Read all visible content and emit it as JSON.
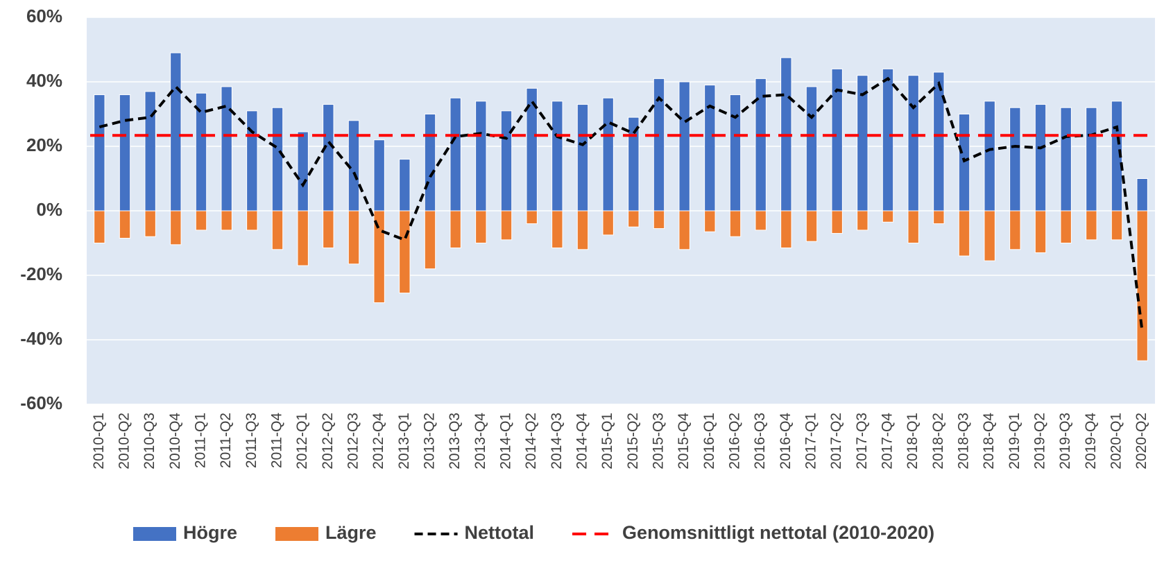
{
  "chart_data": {
    "type": "bar_line",
    "categories": [
      "2010-Q1",
      "2010-Q2",
      "2010-Q3",
      "2010-Q4",
      "2011-Q1",
      "2011-Q2",
      "2011-Q3",
      "2011-Q4",
      "2012-Q1",
      "2012-Q2",
      "2012-Q3",
      "2012-Q4",
      "2013-Q1",
      "2013-Q2",
      "2013-Q3",
      "2013-Q4",
      "2014-Q1",
      "2014-Q2",
      "2014-Q3",
      "2014-Q4",
      "2015-Q1",
      "2015-Q2",
      "2015-Q3",
      "2015-Q4",
      "2016-Q1",
      "2016-Q2",
      "2016-Q3",
      "2016-Q4",
      "2017-Q1",
      "2017-Q2",
      "2017-Q3",
      "2017-Q4",
      "2018-Q1",
      "2018-Q2",
      "2018-Q3",
      "2018-Q4",
      "2019-Q1",
      "2019-Q2",
      "2019-Q3",
      "2019-Q4",
      "2020-Q1",
      "2020-Q2"
    ],
    "series": [
      {
        "name": "Högre",
        "type": "bar",
        "color": "#4472c4",
        "values": [
          36,
          36,
          37,
          49,
          36.5,
          38.5,
          31,
          32,
          24.5,
          33,
          28,
          22,
          16,
          30,
          35,
          34,
          31,
          38,
          34,
          33,
          35,
          29,
          41,
          40,
          39,
          36,
          41,
          47.5,
          38.5,
          44,
          42,
          44,
          42,
          43,
          30,
          34,
          32,
          33,
          32,
          32,
          34,
          10
        ]
      },
      {
        "name": "Lägre",
        "type": "bar",
        "color": "#ed7d31",
        "values": [
          -10,
          -8.5,
          -8,
          -10.5,
          -6,
          -6,
          -6,
          -12,
          -17,
          -11.5,
          -16.5,
          -28.5,
          -25.5,
          -18,
          -11.5,
          -10,
          -9,
          -4,
          -11.5,
          -12,
          -7.5,
          -5,
          -5.5,
          -12,
          -6.5,
          -8,
          -6,
          -11.5,
          -9.5,
          -7,
          -6,
          -3.5,
          -10,
          -4,
          -14,
          -15.5,
          -12,
          -13,
          -10,
          -9,
          -9,
          -46.5
        ]
      },
      {
        "name": "Nettotal",
        "type": "line",
        "color": "#000000",
        "values": [
          26,
          28,
          29,
          38.5,
          30.5,
          32.5,
          24.5,
          19.5,
          8,
          21.5,
          12,
          -6,
          -9,
          10.5,
          23,
          24,
          22.5,
          34,
          23,
          20.5,
          27.5,
          24,
          35,
          27.5,
          32.5,
          29,
          35.5,
          36,
          29,
          37.5,
          36,
          41,
          32,
          39.5,
          15.5,
          19,
          20,
          19.5,
          23,
          23.5,
          26,
          -37.5
        ]
      }
    ],
    "reference_lines": [
      {
        "name": "Genomsnittligt nettotal (2010-2020)",
        "color": "#ff0000",
        "value": 23.4
      }
    ],
    "ylim": [
      -60,
      60
    ],
    "yticks": [
      {
        "value": -60,
        "label": "-60%"
      },
      {
        "value": -40,
        "label": "-40%"
      },
      {
        "value": -20,
        "label": "-20%"
      },
      {
        "value": 0,
        "label": "0%"
      },
      {
        "value": 20,
        "label": "20%"
      },
      {
        "value": 40,
        "label": "40%"
      },
      {
        "value": 60,
        "label": "60%"
      }
    ],
    "grid": true
  }
}
